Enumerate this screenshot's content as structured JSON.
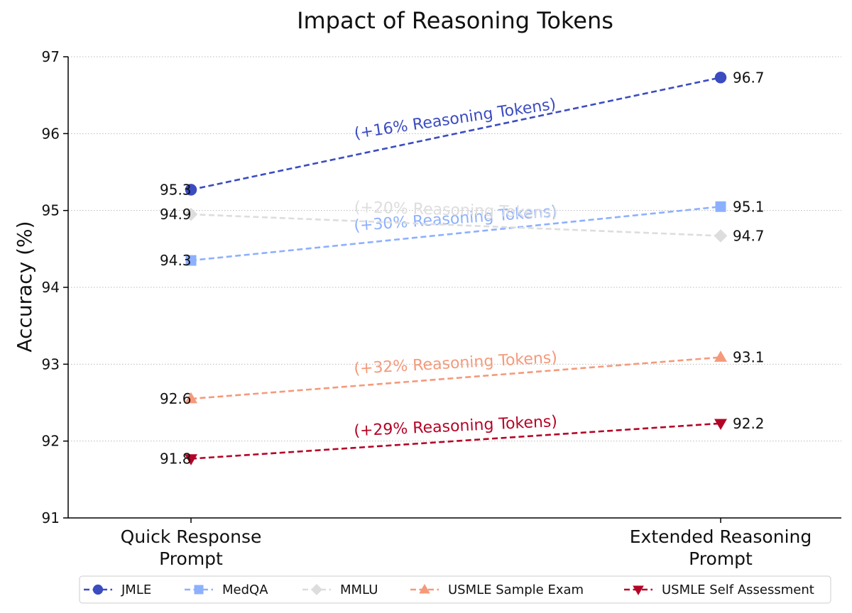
{
  "chart_data": {
    "type": "line",
    "title": "Impact of Reasoning Tokens",
    "xlabel": "",
    "ylabel": "Accuracy (%)",
    "ylim": [
      91,
      97
    ],
    "yticks": [
      91,
      92,
      93,
      94,
      95,
      96,
      97
    ],
    "grid": true,
    "legend_position": "bottom",
    "categories": [
      {
        "line1": "Quick Response",
        "line2": "Prompt"
      },
      {
        "line1": "Extended Reasoning",
        "line2": "Prompt"
      }
    ],
    "series": [
      {
        "name": "JMLE",
        "values": [
          95.27,
          96.73
        ],
        "labels": [
          "95.3",
          "96.7"
        ],
        "color": "#3b4cc0",
        "marker": "circle",
        "annotation": "(+16% Reasoning Tokens)",
        "annotation_angle": -8.4
      },
      {
        "name": "MedQA",
        "values": [
          94.35,
          95.05
        ],
        "labels": [
          "94.3",
          "95.1"
        ],
        "color": "#8db0fe",
        "marker": "square",
        "annotation": "(+30% Reasoning Tokens)",
        "annotation_angle": -4.1
      },
      {
        "name": "MMLU",
        "values": [
          94.95,
          94.67
        ],
        "labels": [
          "94.9",
          "94.7"
        ],
        "color": "#dddddd",
        "marker": "diamond",
        "annotation": "(+20% Reasoning Tokens)",
        "annotation_angle": 1.7
      },
      {
        "name": "USMLE Sample Exam",
        "values": [
          92.55,
          93.09
        ],
        "labels": [
          "92.6",
          "93.1"
        ],
        "color": "#f49a7b",
        "marker": "triangle-up",
        "annotation": "(+32% Reasoning Tokens)",
        "annotation_angle": -3.2
      },
      {
        "name": "USMLE Self Assessment",
        "values": [
          91.77,
          92.23
        ],
        "labels": [
          "91.8",
          "92.2"
        ],
        "color": "#b40426",
        "marker": "triangle-down",
        "annotation": "(+29% Reasoning Tokens)",
        "annotation_angle": -2.7
      }
    ]
  }
}
